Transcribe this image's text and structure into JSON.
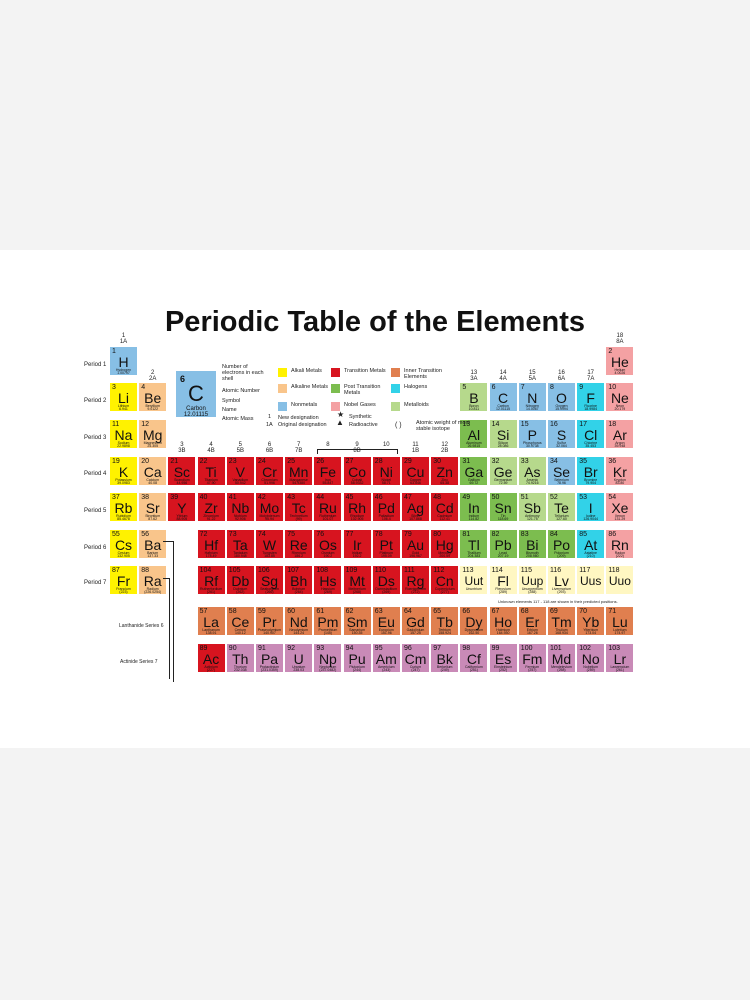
{
  "title": "Periodic Table of the Elements",
  "colors": {
    "alkali": "#fff200",
    "alkaline": "#f9c58b",
    "transition": "#d7141f",
    "post": "#7cbd4f",
    "nonmetal": "#87bfe5",
    "noble": "#f4a1a3",
    "inner": "#e07f4f",
    "actinide": "#c98ab7",
    "halogen": "#32d2e8",
    "metalloid": "#b6d98c",
    "unknown": "#fff7c2"
  },
  "periods": [
    "Period 1",
    "Period 2",
    "Period 3",
    "Period 4",
    "Period 5",
    "Period 6",
    "Period 7"
  ],
  "series_labels": [
    "Lanthanide Series 6",
    "Actinide Series 7"
  ],
  "groups": [
    {
      "col": 1,
      "top": "1",
      "bot": "1A"
    },
    {
      "col": 2,
      "top": "2",
      "bot": "2A"
    },
    {
      "col": 3,
      "top": "3",
      "bot": "3B"
    },
    {
      "col": 4,
      "top": "4",
      "bot": "4B"
    },
    {
      "col": 5,
      "top": "5",
      "bot": "5B"
    },
    {
      "col": 6,
      "top": "6",
      "bot": "6B"
    },
    {
      "col": 7,
      "top": "7",
      "bot": "7B"
    },
    {
      "col": 8,
      "top": "8",
      "bot": ""
    },
    {
      "col": 9,
      "top": "9",
      "bot": "8B"
    },
    {
      "col": 10,
      "top": "10",
      "bot": ""
    },
    {
      "col": 11,
      "top": "11",
      "bot": "1B"
    },
    {
      "col": 12,
      "top": "12",
      "bot": "2B"
    },
    {
      "col": 13,
      "top": "13",
      "bot": "3A"
    },
    {
      "col": 14,
      "top": "14",
      "bot": "4A"
    },
    {
      "col": 15,
      "top": "15",
      "bot": "5A"
    },
    {
      "col": 16,
      "top": "16",
      "bot": "6A"
    },
    {
      "col": 17,
      "top": "17",
      "bot": "7A"
    },
    {
      "col": 18,
      "top": "18",
      "bot": "8A"
    }
  ],
  "legend": {
    "key_number": "6",
    "key_symbol": "C",
    "key_name": "Carbon",
    "key_mass": "12.01115",
    "key_labels": [
      "Number of electrons in each shell",
      "Atomic Number",
      "Symbol",
      "Name",
      "Atomic Mass"
    ],
    "categories": [
      {
        "label": "Alkali Metals",
        "color": "alkali"
      },
      {
        "label": "Alkaline Metals",
        "color": "alkaline"
      },
      {
        "label": "Nonmetals",
        "color": "nonmetal"
      },
      {
        "label": "Transition Metals",
        "color": "transition"
      },
      {
        "label": "Post Transition Metals",
        "color": "post"
      },
      {
        "label": "Nobel Gases",
        "color": "noble"
      },
      {
        "label": "Inner Transition Elements",
        "color": "inner"
      },
      {
        "label": "Halogens",
        "color": "halogen"
      },
      {
        "label": "Metalloids",
        "color": "metalloid"
      }
    ],
    "designation_new": "New designation",
    "designation_old": "Original designation",
    "designation_num": "1",
    "designation_alt": "1A",
    "synthetic": "Synthetic",
    "radioactive": "Radioactive",
    "weight_note": "Atomic weight of most stable isotope",
    "unknown_note": "Unknown elements 117 - 118 are shown in their predicted positions."
  },
  "elements": [
    {
      "n": 1,
      "s": "H",
      "name": "Hydrogen",
      "m": "1.00797",
      "r": 1,
      "c": 1,
      "t": "nonmetal"
    },
    {
      "n": 2,
      "s": "He",
      "name": "Helium",
      "m": "4.0026",
      "r": 1,
      "c": 18,
      "t": "noble"
    },
    {
      "n": 3,
      "s": "Li",
      "name": "Lithium",
      "m": "6.941",
      "r": 2,
      "c": 1,
      "t": "alkali"
    },
    {
      "n": 4,
      "s": "Be",
      "name": "Beryllium",
      "m": "9.0122",
      "r": 2,
      "c": 2,
      "t": "alkaline"
    },
    {
      "n": 5,
      "s": "B",
      "name": "Boron",
      "m": "10.811",
      "r": 2,
      "c": 13,
      "t": "metalloid"
    },
    {
      "n": 6,
      "s": "C",
      "name": "Carbon",
      "m": "12.01115",
      "r": 2,
      "c": 14,
      "t": "nonmetal"
    },
    {
      "n": 7,
      "s": "N",
      "name": "Nitrogen",
      "m": "14.0067",
      "r": 2,
      "c": 15,
      "t": "nonmetal"
    },
    {
      "n": 8,
      "s": "O",
      "name": "Oxygen",
      "m": "15.9994",
      "r": 2,
      "c": 16,
      "t": "nonmetal"
    },
    {
      "n": 9,
      "s": "F",
      "name": "Fluorine",
      "m": "18.9984",
      "r": 2,
      "c": 17,
      "t": "halogen"
    },
    {
      "n": 10,
      "s": "Ne",
      "name": "Neon",
      "m": "20.179",
      "r": 2,
      "c": 18,
      "t": "noble"
    },
    {
      "n": 11,
      "s": "Na",
      "name": "Sodium",
      "m": "22.9898",
      "r": 3,
      "c": 1,
      "t": "alkali"
    },
    {
      "n": 12,
      "s": "Mg",
      "name": "Magnesium",
      "m": "24.305",
      "r": 3,
      "c": 2,
      "t": "alkaline"
    },
    {
      "n": 13,
      "s": "Al",
      "name": "Aluminum",
      "m": "26.9815",
      "r": 3,
      "c": 13,
      "t": "post"
    },
    {
      "n": 14,
      "s": "Si",
      "name": "Silicon",
      "m": "28.086",
      "r": 3,
      "c": 14,
      "t": "metalloid"
    },
    {
      "n": 15,
      "s": "P",
      "name": "Phosphorus",
      "m": "30.9738",
      "r": 3,
      "c": 15,
      "t": "nonmetal"
    },
    {
      "n": 16,
      "s": "S",
      "name": "Sulfur",
      "m": "32.064",
      "r": 3,
      "c": 16,
      "t": "nonmetal"
    },
    {
      "n": 17,
      "s": "Cl",
      "name": "Chlorine",
      "m": "35.453",
      "r": 3,
      "c": 17,
      "t": "halogen"
    },
    {
      "n": 18,
      "s": "Ar",
      "name": "Argon",
      "m": "39.948",
      "r": 3,
      "c": 18,
      "t": "noble"
    },
    {
      "n": 19,
      "s": "K",
      "name": "Potassium",
      "m": "39.0983",
      "r": 4,
      "c": 1,
      "t": "alkali"
    },
    {
      "n": 20,
      "s": "Ca",
      "name": "Calcium",
      "m": "40.08",
      "r": 4,
      "c": 2,
      "t": "alkaline"
    },
    {
      "n": 21,
      "s": "Sc",
      "name": "Scandium",
      "m": "44.956",
      "r": 4,
      "c": 3,
      "t": "transition"
    },
    {
      "n": 22,
      "s": "Ti",
      "name": "Titanium",
      "m": "47.90",
      "r": 4,
      "c": 4,
      "t": "transition"
    },
    {
      "n": 23,
      "s": "V",
      "name": "Vanadium",
      "m": "50.942",
      "r": 4,
      "c": 5,
      "t": "transition"
    },
    {
      "n": 24,
      "s": "Cr",
      "name": "Chromium",
      "m": "51.996",
      "r": 4,
      "c": 6,
      "t": "transition"
    },
    {
      "n": 25,
      "s": "Mn",
      "name": "Manganese",
      "m": "54.9380",
      "r": 4,
      "c": 7,
      "t": "transition"
    },
    {
      "n": 26,
      "s": "Fe",
      "name": "Iron",
      "m": "55.847",
      "r": 4,
      "c": 8,
      "t": "transition"
    },
    {
      "n": 27,
      "s": "Co",
      "name": "Cobalt",
      "m": "58.9332",
      "r": 4,
      "c": 9,
      "t": "transition"
    },
    {
      "n": 28,
      "s": "Ni",
      "name": "Nickel",
      "m": "58.71",
      "r": 4,
      "c": 10,
      "t": "transition"
    },
    {
      "n": 29,
      "s": "Cu",
      "name": "Copper",
      "m": "63.546",
      "r": 4,
      "c": 11,
      "t": "transition"
    },
    {
      "n": 30,
      "s": "Zn",
      "name": "Zinc",
      "m": "65.38",
      "r": 4,
      "c": 12,
      "t": "transition"
    },
    {
      "n": 31,
      "s": "Ga",
      "name": "Gallium",
      "m": "69.72",
      "r": 4,
      "c": 13,
      "t": "post"
    },
    {
      "n": 32,
      "s": "Ge",
      "name": "Germanium",
      "m": "72.59",
      "r": 4,
      "c": 14,
      "t": "metalloid"
    },
    {
      "n": 33,
      "s": "As",
      "name": "Arsenic",
      "m": "74.9216",
      "r": 4,
      "c": 15,
      "t": "metalloid"
    },
    {
      "n": 34,
      "s": "Se",
      "name": "Selenium",
      "m": "78.96",
      "r": 4,
      "c": 16,
      "t": "nonmetal"
    },
    {
      "n": 35,
      "s": "Br",
      "name": "Bromine",
      "m": "79.904",
      "r": 4,
      "c": 17,
      "t": "halogen"
    },
    {
      "n": 36,
      "s": "Kr",
      "name": "Krypton",
      "m": "83.80",
      "r": 4,
      "c": 18,
      "t": "noble"
    },
    {
      "n": 37,
      "s": "Rb",
      "name": "Rubidium",
      "m": "85.4678",
      "r": 5,
      "c": 1,
      "t": "alkali"
    },
    {
      "n": 38,
      "s": "Sr",
      "name": "Strontium",
      "m": "87.62",
      "r": 5,
      "c": 2,
      "t": "alkaline"
    },
    {
      "n": 39,
      "s": "Y",
      "name": "Yttrium",
      "m": "88.905",
      "r": 5,
      "c": 3,
      "t": "transition"
    },
    {
      "n": 40,
      "s": "Zr",
      "name": "Zirconium",
      "m": "91.22",
      "r": 5,
      "c": 4,
      "t": "transition"
    },
    {
      "n": 41,
      "s": "Nb",
      "name": "Niobium",
      "m": "92.906",
      "r": 5,
      "c": 5,
      "t": "transition"
    },
    {
      "n": 42,
      "s": "Mo",
      "name": "Molybdenum",
      "m": "95.94",
      "r": 5,
      "c": 6,
      "t": "transition"
    },
    {
      "n": 43,
      "s": "Tc",
      "name": "Technetium",
      "m": "(99)",
      "r": 5,
      "c": 7,
      "t": "transition"
    },
    {
      "n": 44,
      "s": "Ru",
      "name": "Ruthenium",
      "m": "101.07",
      "r": 5,
      "c": 8,
      "t": "transition"
    },
    {
      "n": 45,
      "s": "Rh",
      "name": "Rhodium",
      "m": "102.905",
      "r": 5,
      "c": 9,
      "t": "transition"
    },
    {
      "n": 46,
      "s": "Pd",
      "name": "Palladium",
      "m": "106.4",
      "r": 5,
      "c": 10,
      "t": "transition"
    },
    {
      "n": 47,
      "s": "Ag",
      "name": "Silver",
      "m": "107.868",
      "r": 5,
      "c": 11,
      "t": "transition"
    },
    {
      "n": 48,
      "s": "Cd",
      "name": "Cadmium",
      "m": "112.41",
      "r": 5,
      "c": 12,
      "t": "transition"
    },
    {
      "n": 49,
      "s": "In",
      "name": "Indium",
      "m": "114.82",
      "r": 5,
      "c": 13,
      "t": "post"
    },
    {
      "n": 50,
      "s": "Sn",
      "name": "Tin",
      "m": "118.69",
      "r": 5,
      "c": 14,
      "t": "post"
    },
    {
      "n": 51,
      "s": "Sb",
      "name": "Antimony",
      "m": "121.75",
      "r": 5,
      "c": 15,
      "t": "metalloid"
    },
    {
      "n": 52,
      "s": "Te",
      "name": "Tellurium",
      "m": "127.60",
      "r": 5,
      "c": 16,
      "t": "metalloid"
    },
    {
      "n": 53,
      "s": "I",
      "name": "Iodine",
      "m": "126.9044",
      "r": 5,
      "c": 17,
      "t": "halogen"
    },
    {
      "n": 54,
      "s": "Xe",
      "name": "Xenon",
      "m": "131.29",
      "r": 5,
      "c": 18,
      "t": "noble"
    },
    {
      "n": 55,
      "s": "Cs",
      "name": "Cesium",
      "m": "132.905",
      "r": 6,
      "c": 1,
      "t": "alkali"
    },
    {
      "n": 56,
      "s": "Ba",
      "name": "Barium",
      "m": "137.33",
      "r": 6,
      "c": 2,
      "t": "alkaline"
    },
    {
      "n": 72,
      "s": "Hf",
      "name": "Hafnium",
      "m": "178.49",
      "r": 6,
      "c": 4,
      "t": "transition"
    },
    {
      "n": 73,
      "s": "Ta",
      "name": "Tantalum",
      "m": "180.948",
      "r": 6,
      "c": 5,
      "t": "transition"
    },
    {
      "n": 74,
      "s": "W",
      "name": "Tungsten",
      "m": "183.85",
      "r": 6,
      "c": 6,
      "t": "transition"
    },
    {
      "n": 75,
      "s": "Re",
      "name": "Rhenium",
      "m": "186.2",
      "r": 6,
      "c": 7,
      "t": "transition"
    },
    {
      "n": 76,
      "s": "Os",
      "name": "Osmium",
      "m": "190.2",
      "r": 6,
      "c": 8,
      "t": "transition"
    },
    {
      "n": 77,
      "s": "Ir",
      "name": "Iridium",
      "m": "192.2",
      "r": 6,
      "c": 9,
      "t": "transition"
    },
    {
      "n": 78,
      "s": "Pt",
      "name": "Platinum",
      "m": "195.09",
      "r": 6,
      "c": 10,
      "t": "transition"
    },
    {
      "n": 79,
      "s": "Au",
      "name": "Gold",
      "m": "196.967",
      "r": 6,
      "c": 11,
      "t": "transition"
    },
    {
      "n": 80,
      "s": "Hg",
      "name": "Mercury",
      "m": "200.59",
      "r": 6,
      "c": 12,
      "t": "transition"
    },
    {
      "n": 81,
      "s": "Tl",
      "name": "Thallium",
      "m": "204.383",
      "r": 6,
      "c": 13,
      "t": "post"
    },
    {
      "n": 82,
      "s": "Pb",
      "name": "Lead",
      "m": "207.19",
      "r": 6,
      "c": 14,
      "t": "post"
    },
    {
      "n": 83,
      "s": "Bi",
      "name": "Bismuth",
      "m": "208.980",
      "r": 6,
      "c": 15,
      "t": "post"
    },
    {
      "n": 84,
      "s": "Po",
      "name": "Polonium",
      "m": "(209)",
      "r": 6,
      "c": 16,
      "t": "post"
    },
    {
      "n": 85,
      "s": "At",
      "name": "Astatine",
      "m": "(210)",
      "r": 6,
      "c": 17,
      "t": "halogen"
    },
    {
      "n": 86,
      "s": "Rn",
      "name": "Radon",
      "m": "(222)",
      "r": 6,
      "c": 18,
      "t": "noble"
    },
    {
      "n": 87,
      "s": "Fr",
      "name": "Francium",
      "m": "(223)",
      "r": 7,
      "c": 1,
      "t": "alkali"
    },
    {
      "n": 88,
      "s": "Ra",
      "name": "Radium",
      "m": "(226.0254)",
      "r": 7,
      "c": 2,
      "t": "alkaline"
    },
    {
      "n": 104,
      "s": "Rf",
      "name": "Rutherfordium",
      "m": "(261)",
      "r": 7,
      "c": 4,
      "t": "transition"
    },
    {
      "n": 105,
      "s": "Db",
      "name": "Dubnium",
      "m": "(262)",
      "r": 7,
      "c": 5,
      "t": "transition"
    },
    {
      "n": 106,
      "s": "Sg",
      "name": "Seaborgium",
      "m": "(266)",
      "r": 7,
      "c": 6,
      "t": "transition"
    },
    {
      "n": 107,
      "s": "Bh",
      "name": "Bohrium",
      "m": "(264)",
      "r": 7,
      "c": 7,
      "t": "transition"
    },
    {
      "n": 108,
      "s": "Hs",
      "name": "Hassium",
      "m": "(269)",
      "r": 7,
      "c": 8,
      "t": "transition"
    },
    {
      "n": 109,
      "s": "Mt",
      "name": "Meitnerium",
      "m": "(268)",
      "r": 7,
      "c": 9,
      "t": "transition"
    },
    {
      "n": 110,
      "s": "Ds",
      "name": "Darmstadtium",
      "m": "(269)",
      "r": 7,
      "c": 10,
      "t": "transition"
    },
    {
      "n": 111,
      "s": "Rg",
      "name": "Roentgenium",
      "m": "(272)",
      "r": 7,
      "c": 11,
      "t": "transition"
    },
    {
      "n": 112,
      "s": "Cn",
      "name": "Copernicium",
      "m": "(277)",
      "r": 7,
      "c": 12,
      "t": "transition"
    },
    {
      "n": 113,
      "s": "Uut",
      "name": "Ununtrium",
      "m": "",
      "r": 7,
      "c": 13,
      "t": "unknown"
    },
    {
      "n": 114,
      "s": "Fl",
      "name": "Flerovium",
      "m": "(289)",
      "r": 7,
      "c": 14,
      "t": "unknown"
    },
    {
      "n": 115,
      "s": "Uup",
      "name": "Ununpentium",
      "m": "(288)",
      "r": 7,
      "c": 15,
      "t": "unknown"
    },
    {
      "n": 116,
      "s": "Lv",
      "name": "Livermorium",
      "m": "(293)",
      "r": 7,
      "c": 16,
      "t": "unknown"
    },
    {
      "n": 117,
      "s": "Uus",
      "name": "",
      "m": "",
      "r": 7,
      "c": 17,
      "t": "unknown"
    },
    {
      "n": 118,
      "s": "Uuo",
      "name": "",
      "m": "",
      "r": 7,
      "c": 18,
      "t": "unknown"
    },
    {
      "n": 57,
      "s": "La",
      "name": "Lanthanum",
      "m": "138.91",
      "r": 9,
      "c": 4,
      "t": "inner"
    },
    {
      "n": 58,
      "s": "Ce",
      "name": "Cerium",
      "m": "140.12",
      "r": 9,
      "c": 5,
      "t": "inner"
    },
    {
      "n": 59,
      "s": "Pr",
      "name": "Praseodymium",
      "m": "140.907",
      "r": 9,
      "c": 6,
      "t": "inner"
    },
    {
      "n": 60,
      "s": "Nd",
      "name": "Neodymium",
      "m": "144.24",
      "r": 9,
      "c": 7,
      "t": "inner"
    },
    {
      "n": 61,
      "s": "Pm",
      "name": "Promethium",
      "m": "(145)",
      "r": 9,
      "c": 8,
      "t": "inner"
    },
    {
      "n": 62,
      "s": "Sm",
      "name": "Samarium",
      "m": "150.35",
      "r": 9,
      "c": 9,
      "t": "inner"
    },
    {
      "n": 63,
      "s": "Eu",
      "name": "Europium",
      "m": "151.96",
      "r": 9,
      "c": 10,
      "t": "inner"
    },
    {
      "n": 64,
      "s": "Gd",
      "name": "Gadolinium",
      "m": "157.25",
      "r": 9,
      "c": 11,
      "t": "inner"
    },
    {
      "n": 65,
      "s": "Tb",
      "name": "Terbium",
      "m": "158.924",
      "r": 9,
      "c": 12,
      "t": "inner"
    },
    {
      "n": 66,
      "s": "Dy",
      "name": "Dysprosium",
      "m": "162.50",
      "r": 9,
      "c": 13,
      "t": "inner"
    },
    {
      "n": 67,
      "s": "Ho",
      "name": "Holmium",
      "m": "164.930",
      "r": 9,
      "c": 14,
      "t": "inner"
    },
    {
      "n": 68,
      "s": "Er",
      "name": "Erbium",
      "m": "167.26",
      "r": 9,
      "c": 15,
      "t": "inner"
    },
    {
      "n": 69,
      "s": "Tm",
      "name": "Thulium",
      "m": "168.934",
      "r": 9,
      "c": 16,
      "t": "inner"
    },
    {
      "n": 70,
      "s": "Yb",
      "name": "Ytterbium",
      "m": "173.04",
      "r": 9,
      "c": 17,
      "t": "inner"
    },
    {
      "n": 71,
      "s": "Lu",
      "name": "Lutetium",
      "m": "174.97",
      "r": 9,
      "c": 18,
      "t": "inner"
    },
    {
      "n": 89,
      "s": "Ac",
      "name": "Actinium",
      "m": "(227)",
      "r": 10,
      "c": 4,
      "t": "transition"
    },
    {
      "n": 90,
      "s": "Th",
      "name": "Thorium",
      "m": "232.038",
      "r": 10,
      "c": 5,
      "t": "actinide"
    },
    {
      "n": 91,
      "s": "Pa",
      "name": "Protactinium",
      "m": "(231.0359)",
      "r": 10,
      "c": 6,
      "t": "actinide"
    },
    {
      "n": 92,
      "s": "U",
      "name": "Uranium",
      "m": "238.03",
      "r": 10,
      "c": 7,
      "t": "actinide"
    },
    {
      "n": 93,
      "s": "Np",
      "name": "Neptunium",
      "m": "(237.0482)",
      "r": 10,
      "c": 8,
      "t": "actinide"
    },
    {
      "n": 94,
      "s": "Pu",
      "name": "Plutonium",
      "m": "(244)",
      "r": 10,
      "c": 9,
      "t": "actinide"
    },
    {
      "n": 95,
      "s": "Am",
      "name": "Americium",
      "m": "(243)",
      "r": 10,
      "c": 10,
      "t": "actinide"
    },
    {
      "n": 96,
      "s": "Cm",
      "name": "Curium",
      "m": "(247)",
      "r": 10,
      "c": 11,
      "t": "actinide"
    },
    {
      "n": 97,
      "s": "Bk",
      "name": "Berkelium",
      "m": "(249)",
      "r": 10,
      "c": 12,
      "t": "actinide"
    },
    {
      "n": 98,
      "s": "Cf",
      "name": "Californium",
      "m": "(251)",
      "r": 10,
      "c": 13,
      "t": "actinide"
    },
    {
      "n": 99,
      "s": "Es",
      "name": "Einsteinium",
      "m": "(252)",
      "r": 10,
      "c": 14,
      "t": "actinide"
    },
    {
      "n": 100,
      "s": "Fm",
      "name": "Fermium",
      "m": "(257)",
      "r": 10,
      "c": 15,
      "t": "actinide"
    },
    {
      "n": 101,
      "s": "Md",
      "name": "Mendelevium",
      "m": "(258)",
      "r": 10,
      "c": 16,
      "t": "actinide"
    },
    {
      "n": 102,
      "s": "No",
      "name": "Nobelium",
      "m": "(259)",
      "r": 10,
      "c": 17,
      "t": "actinide"
    },
    {
      "n": 103,
      "s": "Lr",
      "name": "Lawrencium",
      "m": "(261)",
      "r": 10,
      "c": 18,
      "t": "actinide"
    }
  ]
}
